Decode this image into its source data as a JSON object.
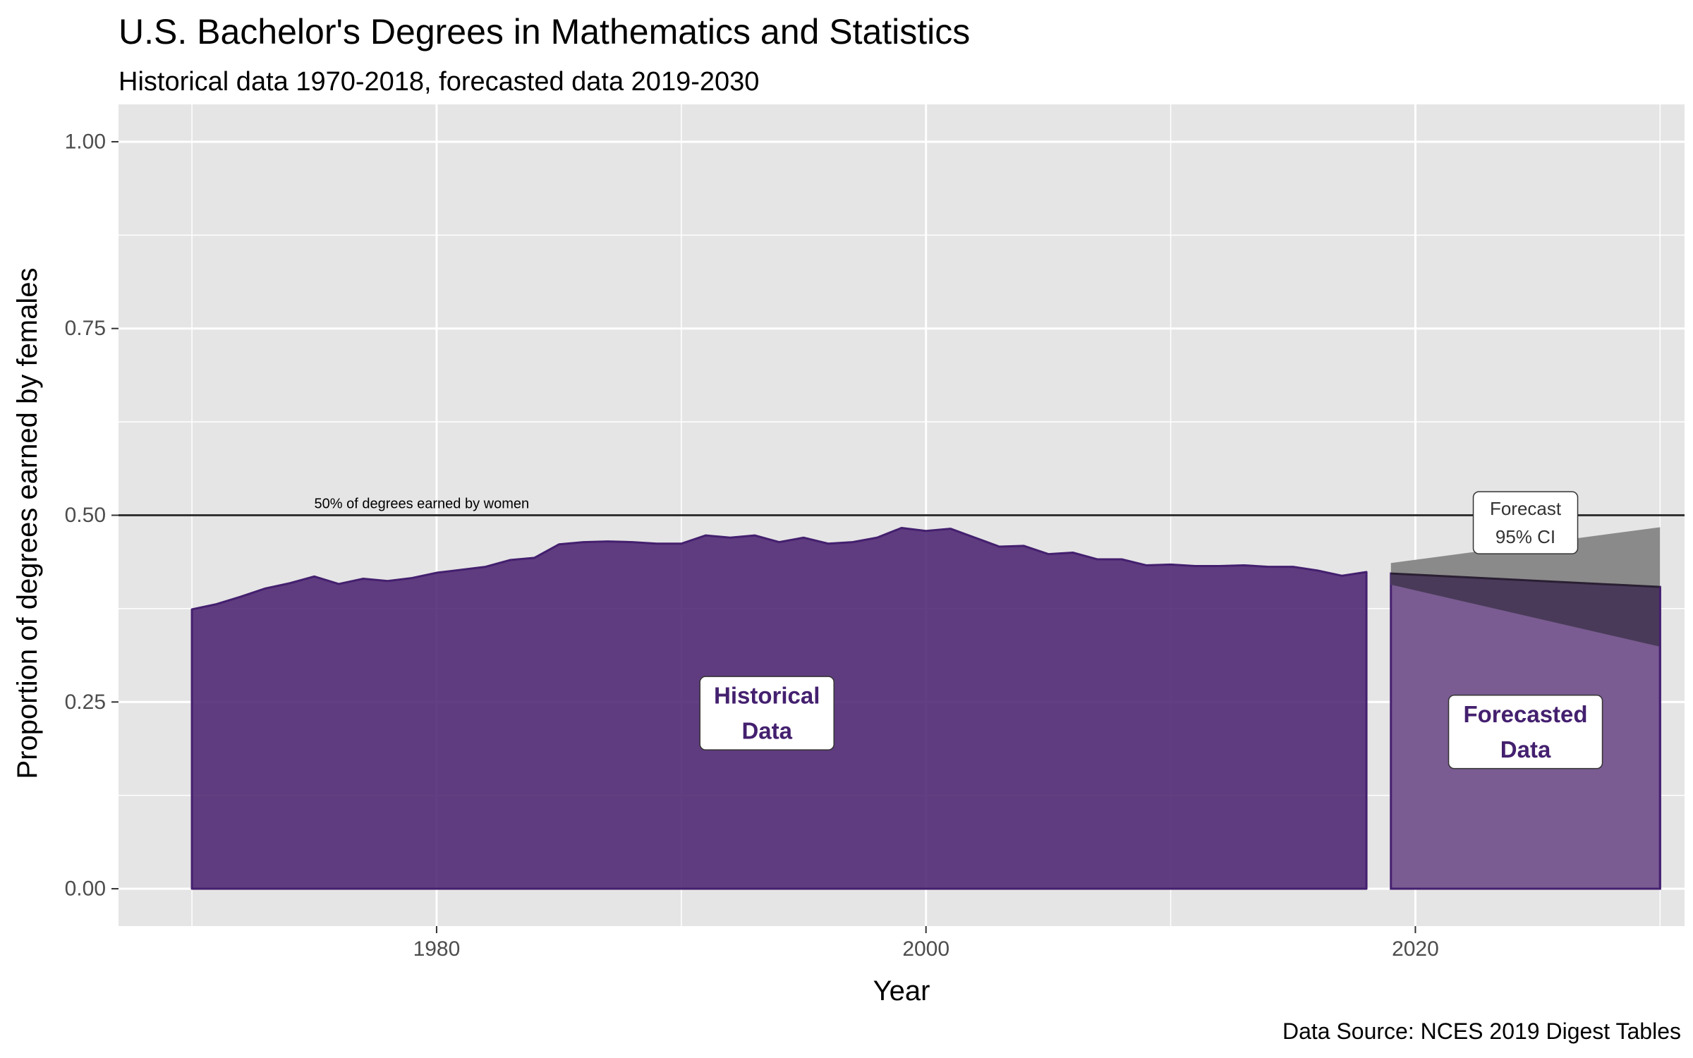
{
  "chart_data": {
    "type": "area",
    "title": "U.S. Bachelor's Degrees in Mathematics and Statistics",
    "subtitle": "Historical data 1970-2018, forecasted data 2019-2030",
    "xlabel": "Year",
    "ylabel": "Proportion of degrees earned by females",
    "caption": "Data Source: NCES 2019 Digest Tables",
    "xlim": [
      1967,
      2031
    ],
    "ylim": [
      -0.05,
      1.05
    ],
    "x_ticks": [
      1980,
      2000,
      2020
    ],
    "x_tick_labels": [
      "1980",
      "2000",
      "2020"
    ],
    "x_minor_ticks": [
      1970,
      1990,
      2010,
      2030
    ],
    "y_ticks": [
      0,
      0.25,
      0.5,
      0.75,
      1.0
    ],
    "y_tick_labels": [
      "0.00",
      "0.25",
      "0.50",
      "0.75",
      "1.00"
    ],
    "grid": true,
    "colors": {
      "panel": "#e5e5e5",
      "grid": "#ffffff",
      "historical_fill": "#4c2471",
      "historical_line": "#44206f",
      "forecast_fill": "#7a5b92",
      "ci_fill": "#8a8a8a",
      "overlap_fill": "#4a3a5a",
      "ref_line": "#333333"
    },
    "reference_line": {
      "y": 0.5,
      "label": "50% of degrees earned by women"
    },
    "series": [
      {
        "x": [
          1970,
          1971,
          1972,
          1973,
          1974,
          1975,
          1976,
          1977,
          1978,
          1979,
          1980,
          1981,
          1982,
          1983,
          1984,
          1985,
          1986,
          1987,
          1988,
          1989,
          1990,
          1991,
          1992,
          1993,
          1994,
          1995,
          1996,
          1997,
          1998,
          1999,
          2000,
          2001,
          2002,
          2003,
          2004,
          2005,
          2006,
          2007,
          2008,
          2009,
          2010,
          2011,
          2012,
          2013,
          2014,
          2015,
          2016,
          2017,
          2018
        ],
        "values": [
          0.374,
          0.381,
          0.391,
          0.402,
          0.409,
          0.418,
          0.408,
          0.415,
          0.412,
          0.416,
          0.423,
          0.427,
          0.431,
          0.44,
          0.443,
          0.461,
          0.464,
          0.465,
          0.464,
          0.462,
          0.462,
          0.473,
          0.47,
          0.473,
          0.464,
          0.47,
          0.462,
          0.464,
          0.47,
          0.483,
          0.479,
          0.482,
          0.47,
          0.458,
          0.459,
          0.448,
          0.45,
          0.441,
          0.441,
          0.433,
          0.434,
          0.432,
          0.432,
          0.433,
          0.431,
          0.431,
          0.426,
          0.419,
          0.424
        ]
      },
      {
        "x": [
          2019,
          2030
        ],
        "values": [
          0.422,
          0.404
        ],
        "ci_lower": [
          0.407,
          0.324
        ],
        "ci_upper": [
          0.436,
          0.484
        ]
      }
    ],
    "annotations": [
      {
        "text": [
          "Historical",
          "Data"
        ],
        "x": 1993.5,
        "y": 0.235
      },
      {
        "text": [
          "Forecasted",
          "Data"
        ],
        "x": 2024.5,
        "y": 0.21
      },
      {
        "text": [
          "Forecast",
          "95% CI"
        ],
        "x": 2024.5,
        "y": 0.49
      }
    ]
  }
}
